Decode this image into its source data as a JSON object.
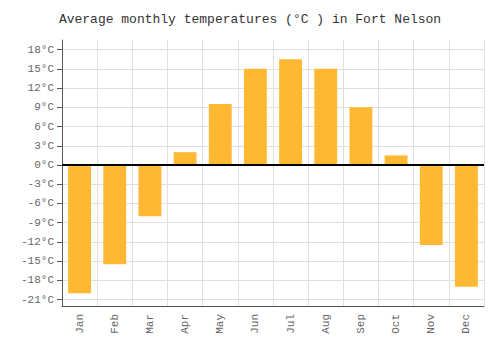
{
  "chart_data": {
    "type": "bar",
    "title": "Average monthly temperatures (°C ) in Fort Nelson",
    "categories": [
      "Jan",
      "Feb",
      "Mar",
      "Apr",
      "May",
      "Jun",
      "Jul",
      "Aug",
      "Sep",
      "Oct",
      "Nov",
      "Dec"
    ],
    "values": [
      -20,
      -15.5,
      -8,
      2,
      9.5,
      15,
      16.5,
      15,
      9,
      1.5,
      -12.5,
      -19
    ],
    "color": "#FFB833",
    "ylim": [
      -22,
      19.5
    ],
    "yticks": [
      {
        "value": -21,
        "label": "-21°C"
      },
      {
        "value": -18,
        "label": "-18°C"
      },
      {
        "value": -15,
        "label": "-15°C"
      },
      {
        "value": -12,
        "label": "-12°C"
      },
      {
        "value": -9,
        "label": "-9°C"
      },
      {
        "value": -6,
        "label": "-6°C"
      },
      {
        "value": -3,
        "label": "-3°C"
      },
      {
        "value": 0,
        "label": "0°C"
      },
      {
        "value": 3,
        "label": "3°C"
      },
      {
        "value": 6,
        "label": "6°C"
      },
      {
        "value": 9,
        "label": "9°C"
      },
      {
        "value": 12,
        "label": "12°C"
      },
      {
        "value": 15,
        "label": "15°C"
      },
      {
        "value": 18,
        "label": "18°C"
      }
    ],
    "grid": true
  }
}
